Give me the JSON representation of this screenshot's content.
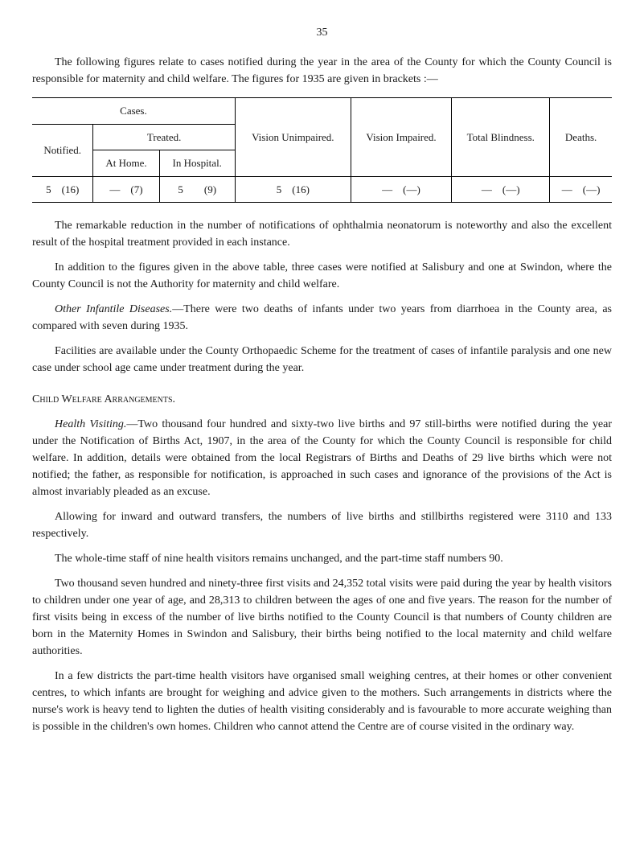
{
  "page_number": "35",
  "intro_para": "The following figures relate to cases notified during the year in the area of the County for which the County Council is responsible for maternity and child welfare. The figures for 1935 are given in brackets :—",
  "table": {
    "header_cases": "Cases.",
    "header_treated": "Treated.",
    "col_notified": "Notified.",
    "col_at_home": "At Home.",
    "col_in_hospital": "In Hospital.",
    "col_vision_unimpaired": "Vision Unimpaired.",
    "col_vision_impaired": "Vision Impaired.",
    "col_total_blindness": "Total Blindness.",
    "col_deaths": "Deaths.",
    "row": {
      "notified": "5    (16)",
      "at_home": "—    (7)",
      "in_hospital": "5        (9)",
      "vision_unimpaired": "5    (16)",
      "vision_impaired": "—    (—)",
      "total_blindness": "—    (—)",
      "deaths": "—    (—)"
    }
  },
  "paras": {
    "p1": "The remarkable reduction in the number of notifications of ophthalmia neonatorum is noteworthy and also the excellent result of the hospital treatment provided in each instance.",
    "p2": "In addition to the figures given in the above table, three cases were notified at Salisbury and one at Swindon, where the County Council is not the Authority for maternity and child welfare.",
    "p3_lead_italic": "Other Infantile Diseases.",
    "p3_rest": "—There were two deaths of infants under two years from diarrhoea in the County area, as compared with seven during 1935.",
    "p4": "Facilities are available under the County Orthopaedic Scheme for the treatment of cases of infantile paralysis and one new case under school age came under treatment during the year.",
    "section_title": "Child Welfare Arrangements.",
    "p5_lead_italic": "Health Visiting.",
    "p5_rest": "—Two thousand four hundred and sixty-two live births and 97 still-births were notified during the year under the Notification of Births Act, 1907, in the area of the County for which the County Council is responsible for child welfare. In addition, details were obtained from the local Registrars of Births and Deaths of 29 live births which were not notified; the father, as responsible for notification, is approached in such cases and ignorance of the provisions of the Act is almost invariably pleaded as an excuse.",
    "p6": "Allowing for inward and outward transfers, the numbers of live births and stillbirths registered were 3110 and 133 respectively.",
    "p7": "The whole-time staff of nine health visitors remains unchanged, and the part-time staff numbers 90.",
    "p8": "Two thousand seven hundred and ninety-three first visits and 24,352 total visits were paid during the year by health visitors to children under one year of age, and 28,313 to children between the ages of one and five years. The reason for the number of first visits being in excess of the number of live births notified to the County Council is that numbers of County children are born in the Maternity Homes in Swindon and Salisbury, their births being notified to the local maternity and child welfare authorities.",
    "p9": "In a few districts the part-time health visitors have organised small weighing centres, at their homes or other convenient centres, to which infants are brought for weighing and advice given to the mothers. Such arrangements in districts where the nurse's work is heavy tend to lighten the duties of health visiting considerably and is favourable to more accurate weighing than is possible in the children's own homes. Children who cannot attend the Centre are of course visited in the ordinary way."
  }
}
